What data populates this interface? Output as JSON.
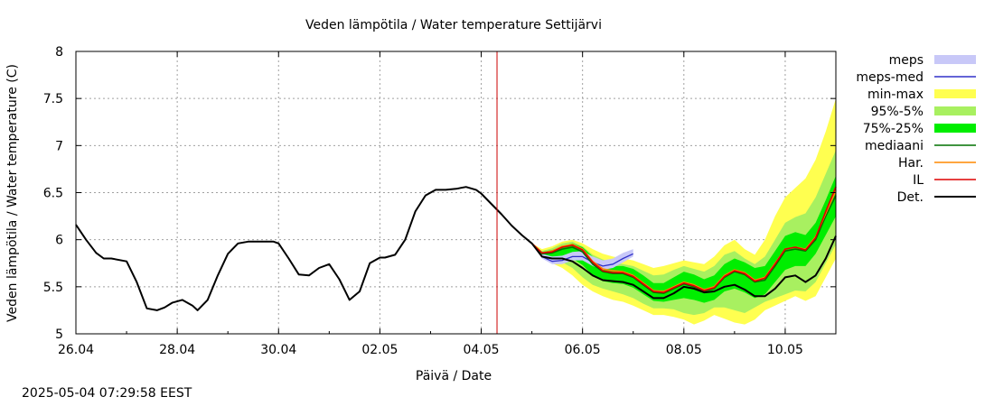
{
  "chart_data": {
    "type": "line",
    "title": "Veden lämpötila / Water temperature Settijärvi",
    "xlabel": "Päivä / Date",
    "ylabel": "Veden lämpötila / Water temperature (C)",
    "ylim": [
      5,
      8
    ],
    "x_range": [
      "2025-04-26",
      "2025-05-11"
    ],
    "x_ticks": [
      {
        "label": "26.04",
        "day": 0
      },
      {
        "label": "28.04",
        "day": 2
      },
      {
        "label": "30.04",
        "day": 4
      },
      {
        "label": "02.05",
        "day": 6
      },
      {
        "label": "04.05",
        "day": 8
      },
      {
        "label": "06.05",
        "day": 10
      },
      {
        "label": "08.05",
        "day": 12
      },
      {
        "label": "10.05",
        "day": 14
      }
    ],
    "y_ticks": [
      "5",
      "5.5",
      "6",
      "6.5",
      "7",
      "7.5",
      "8"
    ],
    "grid": true,
    "legend_position": "right",
    "forecast_start": "2025-05-04 07:29",
    "colors": {
      "meps": "#c8c8f8",
      "meps_med": "#3030c8",
      "minmax": "#ffff50",
      "p95_5": "#a8f060",
      "p75_25": "#00ee00",
      "mediaani": "#007000",
      "har": "#ff8800",
      "il": "#dd0000",
      "det": "#000000",
      "now_line": "#cc0000"
    },
    "legend": [
      {
        "key": "meps",
        "label": "meps",
        "kind": "band"
      },
      {
        "key": "meps_med",
        "label": "meps-med",
        "kind": "line"
      },
      {
        "key": "minmax",
        "label": "min-max",
        "kind": "band"
      },
      {
        "key": "p95_5",
        "label": "95%-5%",
        "kind": "band"
      },
      {
        "key": "p75_25",
        "label": "75%-25%",
        "kind": "band"
      },
      {
        "key": "mediaani",
        "label": "mediaani",
        "kind": "line"
      },
      {
        "key": "har",
        "label": "Har.",
        "kind": "line"
      },
      {
        "key": "il",
        "label": "IL",
        "kind": "line"
      },
      {
        "key": "det",
        "label": "Det.",
        "kind": "line"
      }
    ],
    "series": {
      "det": {
        "x": [
          0,
          0.2,
          0.4,
          0.55,
          0.7,
          1.0,
          1.2,
          1.4,
          1.6,
          1.75,
          1.9,
          2.1,
          2.3,
          2.4,
          2.6,
          2.8,
          3.0,
          3.2,
          3.4,
          3.6,
          3.9,
          4.0,
          4.2,
          4.4,
          4.6,
          4.8,
          5.0,
          5.2,
          5.4,
          5.6,
          5.8,
          6.0,
          6.1,
          6.3,
          6.5,
          6.7,
          6.9,
          7.1,
          7.3,
          7.5,
          7.7,
          7.9,
          8.0,
          8.2,
          8.4,
          8.6,
          8.8,
          9.0,
          9.2,
          9.4,
          9.6,
          9.8,
          10.0,
          10.2,
          10.4,
          10.6,
          10.8,
          11.0,
          11.2,
          11.4,
          11.6,
          11.8,
          12.0,
          12.2,
          12.4,
          12.6,
          12.8,
          13.0,
          13.2,
          13.4,
          13.6,
          13.8,
          14.0,
          14.2,
          14.4,
          14.6,
          14.8,
          15.0
        ],
        "y": [
          6.16,
          6.0,
          5.86,
          5.8,
          5.8,
          5.77,
          5.55,
          5.27,
          5.25,
          5.28,
          5.33,
          5.36,
          5.3,
          5.25,
          5.36,
          5.62,
          5.85,
          5.96,
          5.98,
          5.98,
          5.98,
          5.96,
          5.8,
          5.63,
          5.62,
          5.7,
          5.74,
          5.58,
          5.36,
          5.45,
          5.75,
          5.81,
          5.81,
          5.84,
          6.0,
          6.3,
          6.47,
          6.53,
          6.53,
          6.54,
          6.56,
          6.53,
          6.49,
          6.38,
          6.27,
          6.15,
          6.05,
          5.96,
          5.82,
          5.8,
          5.8,
          5.77,
          5.7,
          5.62,
          5.57,
          5.56,
          5.55,
          5.52,
          5.45,
          5.38,
          5.38,
          5.43,
          5.5,
          5.48,
          5.44,
          5.45,
          5.5,
          5.52,
          5.47,
          5.4,
          5.4,
          5.48,
          5.6,
          5.62,
          5.55,
          5.62,
          5.8,
          6.04
        ]
      },
      "mediaani": {
        "x": [
          9.0,
          9.2,
          9.4,
          9.6,
          9.8,
          10.0,
          10.2,
          10.4,
          10.6,
          10.8,
          11.0,
          11.2,
          11.4,
          11.6,
          11.8,
          12.0,
          12.2,
          12.4,
          12.6,
          12.8,
          13.0,
          13.2,
          13.4,
          13.6,
          13.8,
          14.0,
          14.2,
          14.4,
          14.6,
          14.8,
          15.0
        ],
        "y": [
          5.96,
          5.85,
          5.86,
          5.9,
          5.92,
          5.87,
          5.74,
          5.66,
          5.64,
          5.64,
          5.6,
          5.52,
          5.44,
          5.43,
          5.48,
          5.53,
          5.5,
          5.45,
          5.48,
          5.6,
          5.66,
          5.63,
          5.55,
          5.57,
          5.72,
          5.88,
          5.9,
          5.88,
          6.0,
          6.25,
          6.47
        ]
      },
      "har": {
        "x": [
          9.0,
          9.2,
          9.4,
          9.6,
          9.8,
          10.0,
          10.2,
          10.4,
          10.6,
          10.8,
          11.0,
          11.2,
          11.4,
          11.6,
          11.8,
          12.0,
          12.2,
          12.4,
          12.6,
          12.8,
          13.0,
          13.2,
          13.4,
          13.6,
          13.8,
          14.0,
          14.2,
          14.4,
          14.6,
          14.8,
          15.0
        ],
        "y": [
          5.96,
          5.86,
          5.88,
          5.93,
          5.95,
          5.9,
          5.77,
          5.69,
          5.67,
          5.66,
          5.62,
          5.54,
          5.46,
          5.45,
          5.5,
          5.55,
          5.52,
          5.47,
          5.5,
          5.62,
          5.68,
          5.65,
          5.57,
          5.6,
          5.75,
          5.9,
          5.92,
          5.9,
          6.03,
          6.28,
          6.52
        ]
      },
      "il": {
        "x": [
          9.0,
          9.2,
          9.4,
          9.6,
          9.8,
          10.0,
          10.2,
          10.4,
          10.6,
          10.8,
          11.0,
          11.2,
          11.4,
          11.6,
          11.8,
          12.0,
          12.2,
          12.4,
          12.6,
          12.8,
          13.0,
          13.2,
          13.4,
          13.6,
          13.8,
          14.0,
          14.2,
          14.4,
          14.6,
          14.8,
          15.0
        ],
        "y": [
          5.96,
          5.86,
          5.87,
          5.92,
          5.94,
          5.89,
          5.76,
          5.67,
          5.65,
          5.65,
          5.61,
          5.53,
          5.45,
          5.44,
          5.49,
          5.54,
          5.51,
          5.46,
          5.49,
          5.61,
          5.67,
          5.64,
          5.56,
          5.59,
          5.74,
          5.9,
          5.92,
          5.89,
          6.02,
          6.3,
          6.56
        ]
      },
      "meps_med": {
        "x": [
          9.0,
          9.2,
          9.4,
          9.6,
          9.8,
          10.0,
          10.2,
          10.4,
          10.6,
          10.8,
          11.0
        ],
        "y": [
          5.96,
          5.82,
          5.77,
          5.78,
          5.82,
          5.82,
          5.76,
          5.72,
          5.74,
          5.8,
          5.85
        ]
      },
      "meps": {
        "x": [
          9.0,
          9.2,
          9.4,
          9.6,
          9.8,
          10.0,
          10.2,
          10.4,
          10.6,
          10.8,
          11.0
        ],
        "low": [
          5.96,
          5.8,
          5.74,
          5.74,
          5.78,
          5.78,
          5.72,
          5.68,
          5.7,
          5.76,
          5.82
        ],
        "high": [
          5.96,
          5.85,
          5.82,
          5.83,
          5.87,
          5.88,
          5.82,
          5.78,
          5.8,
          5.86,
          5.9
        ]
      },
      "minmax": {
        "x": [
          9.0,
          9.2,
          9.4,
          9.6,
          9.8,
          10.0,
          10.2,
          10.4,
          10.6,
          10.8,
          11.0,
          11.2,
          11.4,
          11.6,
          11.8,
          12.0,
          12.2,
          12.4,
          12.6,
          12.8,
          13.0,
          13.2,
          13.4,
          13.6,
          13.8,
          14.0,
          14.2,
          14.4,
          14.6,
          14.8,
          15.0
        ],
        "low": [
          5.96,
          5.82,
          5.75,
          5.7,
          5.62,
          5.52,
          5.45,
          5.4,
          5.36,
          5.34,
          5.3,
          5.25,
          5.2,
          5.2,
          5.18,
          5.15,
          5.1,
          5.14,
          5.2,
          5.16,
          5.12,
          5.1,
          5.15,
          5.25,
          5.3,
          5.35,
          5.4,
          5.35,
          5.4,
          5.6,
          5.8
        ],
        "high": [
          5.96,
          5.9,
          5.93,
          5.98,
          6.0,
          5.96,
          5.9,
          5.85,
          5.82,
          5.8,
          5.78,
          5.74,
          5.7,
          5.72,
          5.75,
          5.78,
          5.76,
          5.74,
          5.82,
          5.94,
          6.0,
          5.9,
          5.84,
          6.0,
          6.25,
          6.45,
          6.55,
          6.65,
          6.85,
          7.15,
          7.5
        ]
      },
      "p95_5": {
        "x": [
          9.0,
          9.2,
          9.4,
          9.6,
          9.8,
          10.0,
          10.2,
          10.4,
          10.6,
          10.8,
          11.0,
          11.2,
          11.4,
          11.6,
          11.8,
          12.0,
          12.2,
          12.4,
          12.6,
          12.8,
          13.0,
          13.2,
          13.4,
          13.6,
          13.8,
          14.0,
          14.2,
          14.4,
          14.6,
          14.8,
          15.0
        ],
        "low": [
          5.96,
          5.82,
          5.79,
          5.76,
          5.7,
          5.6,
          5.52,
          5.48,
          5.45,
          5.42,
          5.38,
          5.32,
          5.27,
          5.27,
          5.26,
          5.22,
          5.2,
          5.22,
          5.28,
          5.28,
          5.25,
          5.22,
          5.28,
          5.34,
          5.38,
          5.42,
          5.46,
          5.45,
          5.55,
          5.75,
          5.95
        ],
        "high": [
          5.96,
          5.88,
          5.91,
          5.96,
          5.98,
          5.93,
          5.84,
          5.79,
          5.76,
          5.74,
          5.72,
          5.67,
          5.62,
          5.63,
          5.68,
          5.72,
          5.69,
          5.66,
          5.72,
          5.84,
          5.88,
          5.8,
          5.74,
          5.82,
          6.0,
          6.18,
          6.24,
          6.28,
          6.45,
          6.7,
          6.95
        ]
      },
      "p75_25": {
        "x": [
          9.0,
          9.2,
          9.4,
          9.6,
          9.8,
          10.0,
          10.2,
          10.4,
          10.6,
          10.8,
          11.0,
          11.2,
          11.4,
          11.6,
          11.8,
          12.0,
          12.2,
          12.4,
          12.6,
          12.8,
          13.0,
          13.2,
          13.4,
          13.6,
          13.8,
          14.0,
          14.2,
          14.4,
          14.6,
          14.8,
          15.0
        ],
        "low": [
          5.96,
          5.83,
          5.82,
          5.82,
          5.8,
          5.73,
          5.62,
          5.56,
          5.54,
          5.53,
          5.49,
          5.42,
          5.35,
          5.34,
          5.36,
          5.38,
          5.36,
          5.33,
          5.36,
          5.45,
          5.48,
          5.44,
          5.38,
          5.42,
          5.55,
          5.68,
          5.72,
          5.72,
          5.85,
          6.05,
          6.25
        ],
        "high": [
          5.96,
          5.87,
          5.89,
          5.93,
          5.96,
          5.92,
          5.82,
          5.74,
          5.72,
          5.72,
          5.69,
          5.62,
          5.54,
          5.54,
          5.6,
          5.66,
          5.63,
          5.58,
          5.62,
          5.74,
          5.8,
          5.76,
          5.7,
          5.72,
          5.88,
          6.04,
          6.08,
          6.05,
          6.18,
          6.42,
          6.68
        ]
      }
    }
  },
  "footer": {
    "timestamp": "2025-05-04 07:29:58 EEST"
  }
}
